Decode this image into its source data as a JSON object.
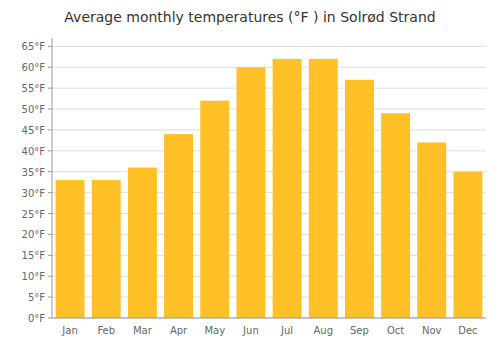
{
  "chart_data": {
    "type": "bar",
    "title": "Average monthly temperatures (°F ) in Solrød Strand",
    "categories": [
      "Jan",
      "Feb",
      "Mar",
      "Apr",
      "May",
      "Jun",
      "Jul",
      "Aug",
      "Sep",
      "Oct",
      "Nov",
      "Dec"
    ],
    "values": [
      33,
      33,
      36,
      44,
      52,
      60,
      62,
      62,
      57,
      49,
      42,
      35
    ],
    "color": "#FFC125",
    "ylim": [
      0,
      67
    ],
    "yticks": [
      {
        "value": 0,
        "label": "0°F"
      },
      {
        "value": 5,
        "label": "5°F"
      },
      {
        "value": 10,
        "label": "10°F"
      },
      {
        "value": 15,
        "label": "15°F"
      },
      {
        "value": 20,
        "label": "20°F"
      },
      {
        "value": 25,
        "label": "25°F"
      },
      {
        "value": 30,
        "label": "30°F"
      },
      {
        "value": 35,
        "label": "35°F"
      },
      {
        "value": 40,
        "label": "40°F"
      },
      {
        "value": 45,
        "label": "45°F"
      },
      {
        "value": 50,
        "label": "50°F"
      },
      {
        "value": 55,
        "label": "55°F"
      },
      {
        "value": 60,
        "label": "60°F"
      },
      {
        "value": 65,
        "label": "65°F"
      }
    ],
    "grid": true
  }
}
